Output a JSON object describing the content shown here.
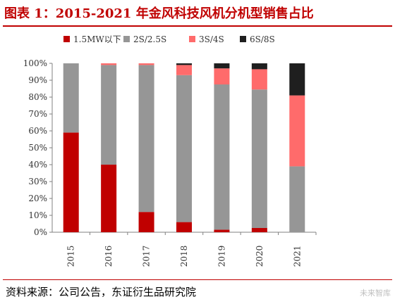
{
  "figure": {
    "title": "图表 1：2015-2021 年金风科技风机分机型销售占比",
    "source": "资料来源：公司公告，东证衍生品研究院",
    "watermark": "未来智库"
  },
  "colors": {
    "title": "#c00000",
    "series": [
      "#c00000",
      "#969696",
      "#ff6b6b",
      "#1f1f1f"
    ]
  },
  "chart_data": {
    "type": "bar",
    "stacked": true,
    "categories": [
      "2015",
      "2016",
      "2017",
      "2018",
      "2019",
      "2020",
      "2021"
    ],
    "series": [
      {
        "name": "1.5MW以下",
        "values": [
          59,
          40,
          12,
          6,
          1.5,
          2.5,
          0
        ]
      },
      {
        "name": "2S/2.5S",
        "values": [
          41,
          59,
          87,
          87,
          86,
          82,
          39
        ]
      },
      {
        "name": "3S/4S",
        "values": [
          0,
          1,
          1,
          6,
          9.5,
          12,
          42
        ]
      },
      {
        "name": "6S/8S",
        "values": [
          0,
          0,
          0,
          1,
          3,
          3.5,
          19
        ]
      }
    ],
    "ylim": [
      0,
      100
    ],
    "yticks": [
      "0%",
      "10%",
      "20%",
      "30%",
      "40%",
      "50%",
      "60%",
      "70%",
      "80%",
      "90%",
      "100%"
    ],
    "xlabel": "",
    "ylabel": "",
    "legend": "top",
    "grid": false
  }
}
